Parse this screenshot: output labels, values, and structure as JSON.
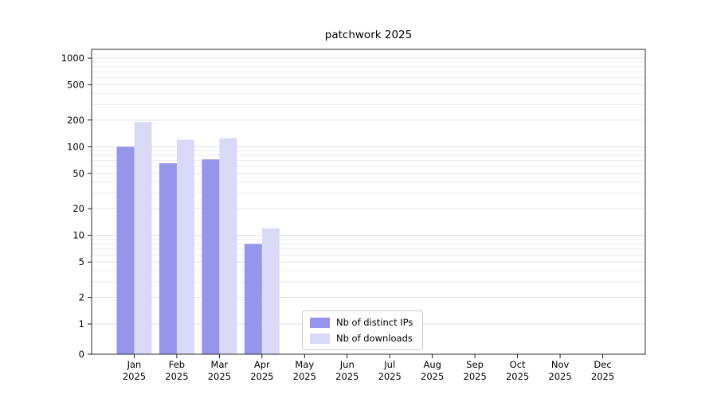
{
  "title": "patchwork 2025",
  "chart_data": {
    "type": "bar",
    "title": "patchwork 2025",
    "categories": [
      "Jan",
      "Feb",
      "Mar",
      "Apr",
      "May",
      "Jun",
      "Jul",
      "Aug",
      "Sep",
      "Oct",
      "Nov",
      "Dec"
    ],
    "year_label": "2025",
    "series": [
      {
        "name": "Nb of distinct IPs",
        "color": "#9595ec",
        "values": [
          100,
          65,
          72,
          8,
          0,
          0,
          0,
          0,
          0,
          0,
          0,
          0
        ]
      },
      {
        "name": "Nb of downloads",
        "color": "#d9d9f8",
        "values": [
          190,
          120,
          125,
          12,
          0,
          0,
          0,
          0,
          0,
          0,
          0,
          0
        ]
      }
    ],
    "yticks": [
      0,
      1,
      2,
      5,
      10,
      20,
      50,
      100,
      200,
      500,
      1000
    ],
    "yscale": "symlog",
    "ylim": [
      0,
      1000
    ],
    "grid": true,
    "legend_position": "lower-center"
  }
}
